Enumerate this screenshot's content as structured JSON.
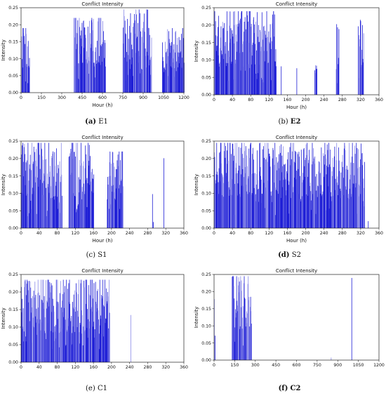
{
  "panels": [
    {
      "id": "E1",
      "caption_letter": "(a)",
      "caption_text": "E1",
      "chart_data": {
        "type": "bar",
        "title": "Conflict Intensity",
        "xlabel": "Hour (h)",
        "ylabel": "Intensity",
        "xlim": [
          0,
          1200
        ],
        "ylim": [
          0,
          0.25
        ],
        "xticks": [
          "0",
          "150",
          "300",
          "450",
          "600",
          "750",
          "900",
          "1050",
          "1200"
        ],
        "yticks": [
          "0.00",
          "0.05",
          "0.10",
          "0.15",
          "0.20",
          "0.25"
        ],
        "bar_color": "#1f1fd6",
        "clusters": [
          {
            "start": 0,
            "end": 60,
            "max": 0.19
          },
          {
            "start": 390,
            "end": 620,
            "max": 0.22
          },
          {
            "start": 750,
            "end": 960,
            "max": 0.245
          },
          {
            "start": 1040,
            "end": 1200,
            "max": 0.19
          }
        ]
      }
    },
    {
      "id": "E2",
      "caption_letter": "(b)",
      "caption_text": "E2",
      "chart_data": {
        "type": "bar",
        "title": "Conflict Intensity",
        "xlabel": "Hour (h)",
        "ylabel": "Intensity",
        "xlim": [
          0,
          360
        ],
        "ylim": [
          0,
          0.25
        ],
        "xticks": [
          "0",
          "40",
          "80",
          "120",
          "160",
          "200",
          "240",
          "280",
          "320",
          "360"
        ],
        "yticks": [
          "0.00",
          "0.05",
          "0.10",
          "0.15",
          "0.20",
          "0.25"
        ],
        "bar_color": "#1f1fd6",
        "clusters": [
          {
            "start": 0,
            "end": 135,
            "max": 0.24
          },
          {
            "start": 146,
            "end": 147,
            "max": 0.245
          },
          {
            "start": 180,
            "end": 181,
            "max": 0.21
          },
          {
            "start": 219,
            "end": 224,
            "max": 0.16
          },
          {
            "start": 266,
            "end": 272,
            "max": 0.22
          },
          {
            "start": 314,
            "end": 326,
            "max": 0.225
          }
        ]
      }
    },
    {
      "id": "S1",
      "caption_letter": "(c)",
      "caption_text": "S1",
      "chart_data": {
        "type": "bar",
        "title": "Conflict Intensity",
        "xlabel": "Hour (h)",
        "ylabel": "Intensity",
        "xlim": [
          0,
          360
        ],
        "ylim": [
          0,
          0.25
        ],
        "xticks": [
          "0",
          "40",
          "80",
          "120",
          "160",
          "200",
          "240",
          "280",
          "320",
          "360"
        ],
        "yticks": [
          "0.00",
          "0.05",
          "0.10",
          "0.15",
          "0.20",
          "0.25"
        ],
        "bar_color": "#1f1fd6",
        "clusters": [
          {
            "start": 0,
            "end": 90,
            "max": 0.245
          },
          {
            "start": 105,
            "end": 160,
            "max": 0.245
          },
          {
            "start": 190,
            "end": 225,
            "max": 0.22
          },
          {
            "start": 290,
            "end": 292,
            "max": 0.1
          },
          {
            "start": 315,
            "end": 316,
            "max": 0.21
          }
        ]
      }
    },
    {
      "id": "S2",
      "caption_letter": "(d)",
      "caption_text": "S2",
      "chart_data": {
        "type": "bar",
        "title": "Conflict Intensity",
        "xlabel": "Hour (h)",
        "ylabel": "Intensity",
        "xlim": [
          0,
          360
        ],
        "ylim": [
          0,
          0.25
        ],
        "xticks": [
          "0",
          "40",
          "80",
          "120",
          "160",
          "200",
          "240",
          "280",
          "320",
          "360"
        ],
        "yticks": [
          "0.00",
          "0.05",
          "0.10",
          "0.15",
          "0.20",
          "0.25"
        ],
        "bar_color": "#1f1fd6",
        "clusters": [
          {
            "start": 0,
            "end": 328,
            "max": 0.245
          },
          {
            "start": 336,
            "end": 337,
            "max": 0.02
          }
        ]
      }
    },
    {
      "id": "C1",
      "caption_letter": "(e)",
      "caption_text": "C1",
      "chart_data": {
        "type": "bar",
        "title": "Conflict Intensity",
        "xlabel": "",
        "ylabel": "Intensity",
        "xlim": [
          0,
          360
        ],
        "ylim": [
          0,
          0.25
        ],
        "xticks": [
          "0",
          "40",
          "80",
          "120",
          "160",
          "200",
          "240",
          "280",
          "320",
          "360"
        ],
        "yticks": [
          "0.00",
          "0.05",
          "0.10",
          "0.15",
          "0.20",
          "0.25"
        ],
        "bar_color": "#1f1fd6",
        "clusters": [
          {
            "start": 0,
            "end": 195,
            "max": 0.235
          },
          {
            "start": 242,
            "end": 243,
            "max": 0.16
          }
        ]
      }
    },
    {
      "id": "C2",
      "caption_letter": "(f)",
      "caption_text": "C2",
      "chart_data": {
        "type": "bar",
        "title": "Conflict Intensity",
        "xlabel": "",
        "ylabel": "Intensity",
        "xlim": [
          0,
          1200
        ],
        "ylim": [
          0,
          0.25
        ],
        "xticks": [
          "0",
          "150",
          "300",
          "450",
          "600",
          "750",
          "900",
          "1050",
          "1200"
        ],
        "yticks": [
          "0.00",
          "0.05",
          "0.10",
          "0.15",
          "0.20",
          "0.25"
        ],
        "bar_color": "#1f1fd6",
        "clusters": [
          {
            "start": 0,
            "end": 5,
            "max": 0.19
          },
          {
            "start": 130,
            "end": 270,
            "max": 0.245
          },
          {
            "start": 850,
            "end": 852,
            "max": 0.012
          },
          {
            "start": 1000,
            "end": 1002,
            "max": 0.24
          }
        ]
      }
    }
  ]
}
